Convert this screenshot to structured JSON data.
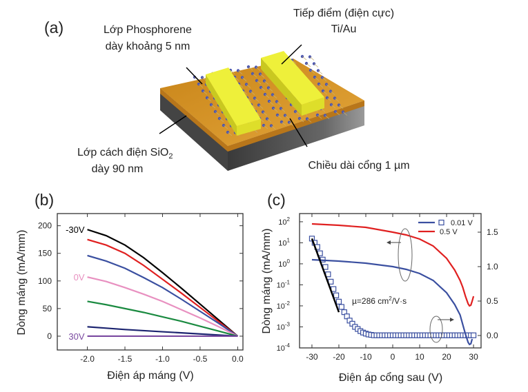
{
  "panel_a": {
    "label": "(a)",
    "phosphorene_line1": "Lớp Phosphorene",
    "phosphorene_line2": "dày khoảng 5 nm",
    "contact_line1": "Tiếp điểm (điện cực)",
    "contact_line2": "Ti/Au",
    "oxide_line1": "Lớp cách điện SiO",
    "oxide_sub": "2",
    "oxide_line2": "dày 90 nm",
    "gate_length": "Chiều dài cổng 1 µm",
    "colors": {
      "substrate_top": "#d9961f",
      "substrate_side": "#5a5a5a",
      "contact": "#eef03a",
      "atoms": "#4a55b0"
    }
  },
  "chart_data": [
    {
      "panel_label": "(b)",
      "type": "line",
      "xlabel": "Điện áp máng (V)",
      "ylabel": "Dòng máng (mA/mm)",
      "xlim": [
        -2.4,
        0.07
      ],
      "ylim": [
        -25,
        222
      ],
      "xticks": [
        -2.0,
        -1.5,
        -1.0,
        -0.5,
        0.0
      ],
      "xtick_labels": [
        "-2.0",
        "-1.5",
        "-1.0",
        "-0.5",
        "0.0"
      ],
      "yticks": [
        0,
        50,
        100,
        150,
        200
      ],
      "ytick_labels": [
        "0",
        "50",
        "100",
        "150",
        "200"
      ],
      "x": [
        -2.0,
        -1.75,
        -1.5,
        -1.25,
        -1.0,
        -0.75,
        -0.5,
        -0.25,
        0.0
      ],
      "series": [
        {
          "color": "#000000",
          "values": [
            193,
            182,
            165,
            142,
            115,
            87,
            58,
            29,
            0
          ]
        },
        {
          "color": "#e02020",
          "values": [
            175,
            165,
            150,
            128,
            103,
            78,
            52,
            26,
            0
          ]
        },
        {
          "color": "#3a4fa0",
          "values": [
            146,
            136,
            123,
            106,
            88,
            67,
            45,
            23,
            0
          ]
        },
        {
          "color": "#e890c0",
          "values": [
            107,
            99,
            88,
            76,
            63,
            48,
            33,
            17,
            0
          ]
        },
        {
          "color": "#1a8a40",
          "values": [
            63,
            57,
            50,
            43,
            35,
            27,
            18,
            9,
            0
          ]
        },
        {
          "color": "#1c2470",
          "values": [
            17,
            14.5,
            12,
            10,
            8,
            6,
            4,
            2,
            0
          ]
        },
        {
          "color": "#7a4aa0",
          "values": [
            0,
            0,
            0,
            0,
            0,
            0,
            0,
            0,
            0
          ]
        }
      ],
      "annotations": [
        {
          "text": "-30V",
          "color": "#000000",
          "x": -2.0,
          "y": 193
        },
        {
          "text": "0V",
          "color": "#e890c0",
          "x": -2.0,
          "y": 107
        },
        {
          "text": "30V",
          "color": "#7a4aa0",
          "x": -2.0,
          "y": 0
        }
      ]
    },
    {
      "panel_label": "(c)",
      "type": "line",
      "xlabel": "Điện áp cổng sau (V)",
      "ylabel": "Dòng máng (mA/mm)",
      "xlim": [
        -34.6,
        32.8
      ],
      "ylim_log_exponent": [
        -4,
        2.39
      ],
      "y_scale": "log",
      "y2lim": [
        -0.18,
        1.77
      ],
      "xticks": [
        -30,
        -20,
        -10,
        0,
        10,
        20,
        30
      ],
      "xtick_labels": [
        "-30",
        "-20",
        "-10",
        "0",
        "10",
        "20",
        "30"
      ],
      "yticks_exponent": [
        2,
        1,
        0,
        -1,
        -2,
        -3,
        -4
      ],
      "yticks_base": "10",
      "y2ticks": [
        0.0,
        0.5,
        1.0,
        1.5
      ],
      "y2tick_labels": [
        "0.0",
        "0.5",
        "1.0",
        "1.5"
      ],
      "legend": [
        {
          "label": "0.01 V",
          "color": "#3a4fa0",
          "marker": "square"
        },
        {
          "label": "0.5 V",
          "color": "#e02020"
        }
      ],
      "legend_position": "top-right",
      "series": [
        {
          "name": "0.01 V",
          "axis": "left-log",
          "style": "markers",
          "color": "#3a4fa0",
          "x": [
            -30,
            -29,
            -28,
            -27,
            -26,
            -25,
            -24,
            -23,
            -22,
            -21,
            -20,
            -19,
            -18,
            -17,
            -16,
            -15,
            -14,
            -13,
            -12,
            -11,
            -10,
            -9,
            -8,
            -7,
            -6,
            -5,
            -4,
            -3,
            -2,
            -1,
            0,
            1,
            2,
            3,
            4,
            5,
            6,
            7,
            8,
            9,
            10,
            11,
            12,
            13,
            14,
            15,
            16,
            17,
            18,
            19,
            20,
            21,
            22,
            23,
            24,
            25,
            26,
            27,
            28,
            29,
            30
          ],
          "log10_values": [
            1.2,
            1.0,
            0.8,
            0.5,
            0.2,
            -0.15,
            -0.5,
            -0.85,
            -1.2,
            -1.5,
            -1.8,
            -2.05,
            -2.3,
            -2.5,
            -2.7,
            -2.85,
            -3.0,
            -3.1,
            -3.2,
            -3.27,
            -3.32,
            -3.36,
            -3.38,
            -3.4,
            -3.4,
            -3.4,
            -3.4,
            -3.4,
            -3.4,
            -3.4,
            -3.4,
            -3.4,
            -3.4,
            -3.4,
            -3.4,
            -3.4,
            -3.4,
            -3.4,
            -3.4,
            -3.4,
            -3.4,
            -3.4,
            -3.4,
            -3.4,
            -3.4,
            -3.4,
            -3.4,
            -3.4,
            -3.4,
            -3.4,
            -3.4,
            -3.4,
            -3.4,
            -3.4,
            -3.4,
            -3.4,
            -3.4,
            -3.4,
            -3.4,
            -3.4,
            -3.4
          ]
        },
        {
          "name": "0.01 V",
          "axis": "right-linear",
          "style": "line",
          "color": "#3a4fa0",
          "x": [
            -30,
            -20,
            -10,
            0,
            5,
            10,
            15,
            20,
            23,
            25,
            27,
            28,
            28.5,
            29,
            29.5
          ],
          "values": [
            1.1,
            1.08,
            1.05,
            1.0,
            0.96,
            0.9,
            0.8,
            0.62,
            0.45,
            0.3,
            0.02,
            -0.1,
            -0.13,
            -0.12,
            -0.05
          ]
        },
        {
          "name": "0.5 V",
          "axis": "right-linear",
          "style": "line",
          "color": "#e02020",
          "x": [
            -30,
            -20,
            -10,
            0,
            5,
            10,
            15,
            20,
            23,
            25,
            26,
            27,
            28,
            28.5,
            29,
            29.5,
            30
          ],
          "values": [
            1.62,
            1.6,
            1.57,
            1.5,
            1.46,
            1.4,
            1.3,
            1.12,
            0.95,
            0.8,
            0.7,
            0.57,
            0.46,
            0.43,
            0.44,
            0.5,
            0.57
          ]
        },
        {
          "style": "fit-line",
          "axis": "left-log",
          "color": "#000000",
          "x": [
            -30,
            -20
          ],
          "log10_values": [
            1.2,
            -2.3
          ]
        }
      ],
      "annotations": [
        {
          "text": "µ=286 cm",
          "sup": "2",
          "suffix": "/V·s"
        }
      ]
    }
  ]
}
